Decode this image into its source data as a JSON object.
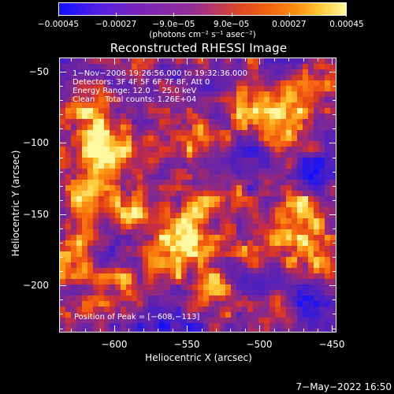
{
  "colorbar": {
    "tick_labels": [
      "−0.00045",
      "−0.00027",
      "−9.0e−05",
      "9.0e−05",
      "0.00027",
      "0.00045"
    ],
    "tick_values": [
      -0.00045,
      -0.00027,
      -9e-05,
      9e-05,
      0.00027,
      0.00045
    ],
    "unit": "(photons cm⁻² s⁻¹ asec⁻²)"
  },
  "chart_data": {
    "type": "heatmap",
    "title": "Reconstructed RHESSI Image",
    "xlabel": "Heliocentric X (arcsec)",
    "ylabel": "Heliocentric Y (arcsec)",
    "xlim": [
      -638,
      -447
    ],
    "ylim": [
      -233,
      -40
    ],
    "x_ticks": [
      -600,
      -550,
      -500,
      -450
    ],
    "x_tick_labels": [
      "−600",
      "−550",
      "−500",
      "−450"
    ],
    "y_ticks": [
      -50,
      -100,
      -150,
      -200
    ],
    "y_tick_labels": [
      "−50",
      "−100",
      "−150",
      "−200"
    ],
    "color_range": [
      -0.00045,
      0.00045
    ],
    "colormap": "blue-purple-red-orange-yellow-white",
    "peak_position": [
      -608,
      -113
    ],
    "bright_regions": [
      {
        "x": -611,
        "y": -114,
        "level": 1.0
      },
      {
        "x": -615,
        "y": -85,
        "level": 0.75
      },
      {
        "x": -578,
        "y": -112,
        "level": 0.8
      },
      {
        "x": -585,
        "y": -145,
        "level": 0.7
      },
      {
        "x": -550,
        "y": -160,
        "level": 0.85
      },
      {
        "x": -560,
        "y": -180,
        "level": 0.8
      },
      {
        "x": -505,
        "y": -75,
        "level": 0.75
      },
      {
        "x": -480,
        "y": -90,
        "level": 0.85
      },
      {
        "x": -470,
        "y": -150,
        "level": 0.8
      },
      {
        "x": -465,
        "y": -185,
        "level": 0.75
      },
      {
        "x": -625,
        "y": -180,
        "level": 0.7
      },
      {
        "x": -595,
        "y": -205,
        "level": 0.65
      },
      {
        "x": -530,
        "y": -205,
        "level": 0.6
      },
      {
        "x": -540,
        "y": -95,
        "level": 0.55
      },
      {
        "x": -620,
        "y": -140,
        "level": 0.6
      },
      {
        "x": -455,
        "y": -55,
        "level": 0.55
      },
      {
        "x": -500,
        "y": -175,
        "level": 0.6
      },
      {
        "x": -525,
        "y": -130,
        "level": 0.5
      },
      {
        "x": -490,
        "y": -215,
        "level": 0.55
      }
    ],
    "dark_regions": [
      {
        "x": -575,
        "y": -125,
        "level": -0.6
      },
      {
        "x": -510,
        "y": -115,
        "level": -0.7
      },
      {
        "x": -500,
        "y": -200,
        "level": -0.8
      },
      {
        "x": -470,
        "y": -205,
        "level": -0.75
      },
      {
        "x": -580,
        "y": -222,
        "level": -0.6
      },
      {
        "x": -535,
        "y": -60,
        "level": -0.5
      },
      {
        "x": -460,
        "y": -120,
        "level": -0.6
      },
      {
        "x": -555,
        "y": -225,
        "level": -0.55
      },
      {
        "x": -600,
        "y": -170,
        "level": -0.45
      }
    ]
  },
  "annotations": {
    "line1": "1−Nov−2006 19:26:56.000 to 19:32:36.000",
    "line2": "Detectors: 3F 4F 5F 6F 7F 8F, Att 0",
    "line3": "Energy Range: 12.0 − 25.0 keV",
    "line4": "Clean    Total counts: 1.26E+04",
    "peak": "Position of Peak = [−608,−113]"
  },
  "footer": {
    "date": "7−May−2022 16:50"
  }
}
